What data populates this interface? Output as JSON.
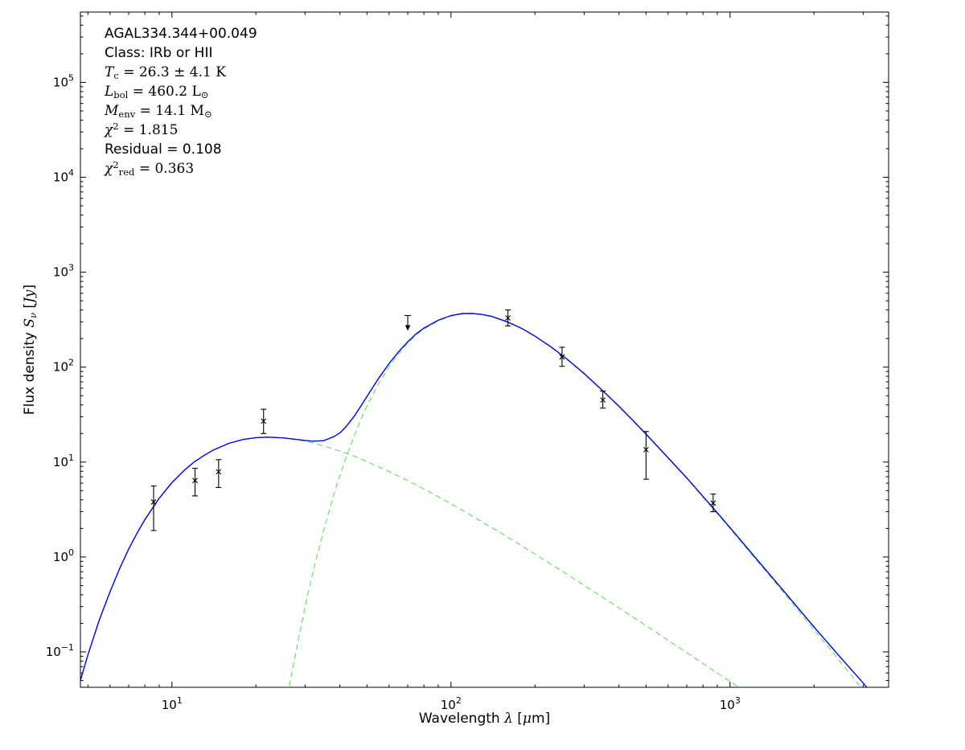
{
  "figure": {
    "background": "#ffffff",
    "axis_color": "#000000",
    "model_color": "#0000ee",
    "component_color": "#70dd70",
    "marker_color": "#000000"
  },
  "annotation": {
    "lines": [
      {
        "font": "sans",
        "parts": [
          {
            "text": "AGAL334.344+00.049"
          }
        ]
      },
      {
        "font": "sans",
        "parts": [
          {
            "text": "Class: IRb or HII"
          }
        ]
      },
      {
        "font": "serif",
        "parts": [
          {
            "text": "T",
            "italic": true
          },
          {
            "text": "c",
            "sub": true
          },
          {
            "text": " = 26.3 ± 4.1 K"
          }
        ]
      },
      {
        "font": "serif",
        "parts": [
          {
            "text": "L",
            "italic": true
          },
          {
            "text": "bol",
            "sub": true
          },
          {
            "text": " = 460.2 L"
          },
          {
            "text": "⊙",
            "sub": true
          }
        ]
      },
      {
        "font": "serif",
        "parts": [
          {
            "text": "M",
            "italic": true
          },
          {
            "text": "env",
            "sub": true
          },
          {
            "text": " = 14.1 M"
          },
          {
            "text": "⊙",
            "sub": true
          }
        ]
      },
      {
        "font": "serif",
        "parts": [
          {
            "text": "χ",
            "italic": true
          },
          {
            "text": "2",
            "sup": true
          },
          {
            "text": " = 1.815"
          }
        ]
      },
      {
        "font": "sans",
        "parts": [
          {
            "text": "Residual = 0.108"
          }
        ]
      },
      {
        "font": "serif",
        "parts": [
          {
            "text": "χ",
            "italic": true
          },
          {
            "text": "2",
            "sup": true
          },
          {
            "text": "red",
            "sub": true
          },
          {
            "text": " = 0.363"
          }
        ]
      }
    ]
  },
  "axes": {
    "xlabel_parts": [
      {
        "text": "Wavelength "
      },
      {
        "text": "λ",
        "italic": true
      },
      {
        "text": " ["
      },
      {
        "text": "μ",
        "italic": true
      },
      {
        "text": "m]"
      }
    ],
    "ylabel_parts": [
      {
        "text": "Flux density "
      },
      {
        "text": "S",
        "italic": true
      },
      {
        "text": "ν",
        "sub": true,
        "italic": true
      },
      {
        "text": " ["
      },
      {
        "text": "Jy",
        "italic": true
      },
      {
        "text": "]"
      }
    ]
  },
  "chart_data": {
    "type": "line",
    "x_scale": "log",
    "y_scale": "log",
    "xlim": [
      4.7,
      3700
    ],
    "ylim": [
      0.0424,
      550000
    ],
    "grid": false,
    "legend": "none",
    "xlabel": "Wavelength λ [μm]",
    "ylabel": "Flux density Sν [Jy]",
    "x_ticks": [
      {
        "value": 10,
        "label": "10^1"
      },
      {
        "value": 100,
        "label": "10^2"
      },
      {
        "value": 1000,
        "label": "10^3"
      }
    ],
    "y_ticks": [
      {
        "value": 0.1,
        "label": "10^−1"
      },
      {
        "value": 1,
        "label": "10^0"
      },
      {
        "value": 10,
        "label": "10^1"
      },
      {
        "value": 100,
        "label": "10^2"
      },
      {
        "value": 1000,
        "label": "10^3"
      },
      {
        "value": 10000,
        "label": "10^4"
      },
      {
        "value": 100000,
        "label": "10^5"
      }
    ],
    "series": [
      {
        "name": "warm-component",
        "description": "hot/warm component fit (green dashed)",
        "color": "#70dd70",
        "style": "dashed",
        "width": 1.2,
        "points": [
          [
            4.7,
            0.05
          ],
          [
            5,
            0.093
          ],
          [
            5.5,
            0.22
          ],
          [
            6,
            0.43
          ],
          [
            6.5,
            0.76
          ],
          [
            7,
            1.21
          ],
          [
            7.5,
            1.78
          ],
          [
            8,
            2.48
          ],
          [
            9,
            4.15
          ],
          [
            10,
            6.07
          ],
          [
            11,
            8.06
          ],
          [
            12,
            10.0
          ],
          [
            13,
            11.7
          ],
          [
            14,
            13.3
          ],
          [
            16,
            15.75
          ],
          [
            18,
            17.3
          ],
          [
            20,
            18.1
          ],
          [
            22,
            18.3
          ],
          [
            25,
            18.0
          ],
          [
            28,
            17.2
          ],
          [
            32,
            15.9
          ],
          [
            36,
            14.4
          ],
          [
            40,
            13.05
          ],
          [
            45,
            11.5
          ],
          [
            50,
            10.1
          ],
          [
            60,
            7.95
          ],
          [
            70,
            6.37
          ],
          [
            85,
            4.72
          ],
          [
            100,
            3.63
          ],
          [
            120,
            2.67
          ],
          [
            150,
            1.81
          ],
          [
            180,
            1.3
          ],
          [
            220,
            0.9
          ],
          [
            270,
            0.615
          ],
          [
            330,
            0.42
          ],
          [
            400,
            0.291
          ],
          [
            500,
            0.189
          ],
          [
            600,
            0.133
          ],
          [
            700,
            0.098
          ],
          [
            870,
            0.064
          ],
          [
            1000,
            0.049
          ],
          [
            1200,
            0.034
          ]
        ]
      },
      {
        "name": "cold-component",
        "description": "cold envelope greybody fit, Tc = 26.3 K (green dashed)",
        "color": "#70dd70",
        "style": "dashed",
        "width": 1.2,
        "points": [
          [
            25,
            0.018
          ],
          [
            26,
            0.035
          ],
          [
            27,
            0.065
          ],
          [
            28,
            0.11
          ],
          [
            30,
            0.3
          ],
          [
            32,
            0.69
          ],
          [
            35,
            1.94
          ],
          [
            38,
            4.5
          ],
          [
            40,
            7.2
          ],
          [
            42,
            11.1
          ],
          [
            45,
            18.9
          ],
          [
            48,
            29.9
          ],
          [
            50,
            39
          ],
          [
            55,
            67
          ],
          [
            60,
            101
          ],
          [
            65,
            139
          ],
          [
            70,
            179
          ],
          [
            75,
            218
          ],
          [
            80,
            252
          ],
          [
            90,
            307
          ],
          [
            100,
            346
          ],
          [
            110,
            364
          ],
          [
            120,
            365
          ],
          [
            130,
            356
          ],
          [
            140,
            340
          ],
          [
            160,
            296
          ],
          [
            180,
            253
          ],
          [
            200,
            211
          ],
          [
            230,
            160
          ],
          [
            260,
            121
          ],
          [
            300,
            85
          ],
          [
            350,
            56
          ],
          [
            400,
            38.4
          ],
          [
            450,
            27
          ],
          [
            500,
            19.5
          ],
          [
            600,
            11
          ],
          [
            700,
            6.7
          ],
          [
            800,
            4.26
          ],
          [
            870,
            3.22
          ],
          [
            1000,
            1.99
          ],
          [
            1200,
            1.05
          ],
          [
            1500,
            0.48
          ],
          [
            2000,
            0.171
          ],
          [
            2500,
            0.077
          ],
          [
            3000,
            0.0395
          ],
          [
            3500,
            0.0224
          ]
        ]
      },
      {
        "name": "total-model",
        "description": "total two-component model (blue solid)",
        "color": "#0000ee",
        "style": "solid",
        "width": 1.4,
        "points": [
          [
            4.7,
            0.05
          ],
          [
            5,
            0.093
          ],
          [
            5.5,
            0.22
          ],
          [
            6,
            0.43
          ],
          [
            6.5,
            0.76
          ],
          [
            7,
            1.21
          ],
          [
            7.5,
            1.78
          ],
          [
            8,
            2.48
          ],
          [
            9,
            4.15
          ],
          [
            10,
            6.07
          ],
          [
            11,
            8.06
          ],
          [
            12,
            10.0
          ],
          [
            13,
            11.7
          ],
          [
            14,
            13.3
          ],
          [
            16,
            15.75
          ],
          [
            18,
            17.3
          ],
          [
            20,
            18.1
          ],
          [
            22,
            18.3
          ],
          [
            25,
            18.0
          ],
          [
            28,
            17.3
          ],
          [
            30,
            16.9
          ],
          [
            32,
            16.6
          ],
          [
            35,
            16.8
          ],
          [
            38,
            18.5
          ],
          [
            40,
            20.3
          ],
          [
            42,
            23.5
          ],
          [
            45,
            30.4
          ],
          [
            48,
            40.6
          ],
          [
            50,
            49.1
          ],
          [
            55,
            76
          ],
          [
            60,
            109
          ],
          [
            65,
            146
          ],
          [
            70,
            185
          ],
          [
            75,
            224
          ],
          [
            80,
            258
          ],
          [
            90,
            312
          ],
          [
            100,
            350
          ],
          [
            110,
            367
          ],
          [
            120,
            368
          ],
          [
            130,
            358
          ],
          [
            140,
            342
          ],
          [
            160,
            298
          ],
          [
            180,
            254
          ],
          [
            200,
            212
          ],
          [
            230,
            161
          ],
          [
            260,
            122
          ],
          [
            300,
            85.5
          ],
          [
            350,
            56.4
          ],
          [
            400,
            38.7
          ],
          [
            450,
            27.2
          ],
          [
            500,
            19.7
          ],
          [
            600,
            11.1
          ],
          [
            700,
            6.8
          ],
          [
            800,
            4.34
          ],
          [
            870,
            3.28
          ],
          [
            1000,
            2.04
          ],
          [
            1200,
            1.08
          ],
          [
            1500,
            0.5
          ],
          [
            2000,
            0.183
          ],
          [
            2500,
            0.086
          ],
          [
            3000,
            0.047
          ],
          [
            3500,
            0.027
          ]
        ]
      }
    ],
    "data_points": [
      {
        "x": 8.6,
        "y": 3.8,
        "lo": 1.9,
        "hi": 5.6
      },
      {
        "x": 12.1,
        "y": 6.4,
        "lo": 4.4,
        "hi": 8.6
      },
      {
        "x": 14.7,
        "y": 7.9,
        "lo": 5.4,
        "hi": 10.6
      },
      {
        "x": 21.3,
        "y": 27,
        "lo": 20,
        "hi": 36
      },
      {
        "x": 160,
        "y": 330,
        "lo": 272,
        "hi": 400
      },
      {
        "x": 250,
        "y": 128,
        "lo": 102,
        "hi": 162
      },
      {
        "x": 350,
        "y": 45,
        "lo": 37,
        "hi": 56
      },
      {
        "x": 500,
        "y": 13.5,
        "lo": 6.6,
        "hi": 21
      },
      {
        "x": 870,
        "y": 3.7,
        "lo": 3.0,
        "hi": 4.6
      }
    ],
    "upper_limits": [
      {
        "x": 70,
        "y": 350
      }
    ]
  }
}
